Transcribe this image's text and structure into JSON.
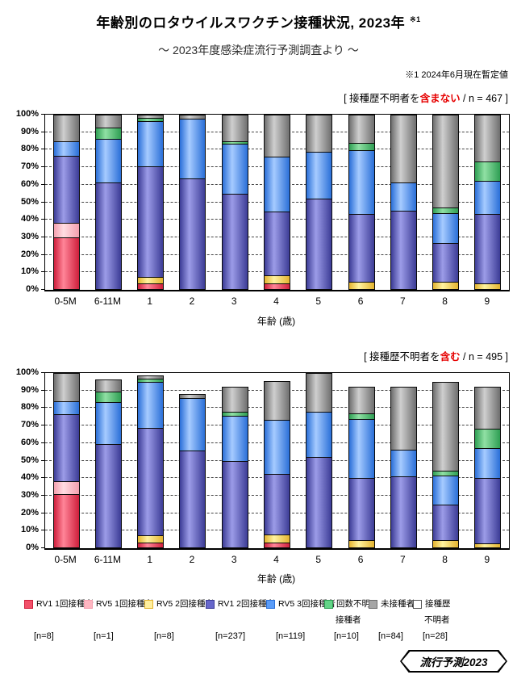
{
  "page": {
    "title": "年齢別のロタウイルスワクチン接種状況, 2023年",
    "title_note_ref": "※1",
    "subtitle": "～ 2023年度感染症流行予測調査より ～",
    "footnote": "※1  2024年6月現在暫定値",
    "badge": "流行予測2023"
  },
  "axis": {
    "x_label": "年齢 (歳)",
    "y_ticks": [
      "100%",
      "90%",
      "80%",
      "70%",
      "60%",
      "50%",
      "40%",
      "30%",
      "20%",
      "10%",
      "0%"
    ],
    "categories": [
      "0-5M",
      "6-11M",
      "1",
      "2",
      "3",
      "4",
      "5",
      "6",
      "7",
      "8",
      "9"
    ]
  },
  "colors": {
    "rv1_1": {
      "edge": "#cf1f3c",
      "mid": "#ff8598",
      "legend": "#f25069"
    },
    "rv5_1": {
      "edge": "#f49fae",
      "mid": "#ffdde2",
      "legend": "#ffb6c1"
    },
    "rv5_2": {
      "edge": "#e3b32f",
      "mid": "#fff3a0",
      "legend": "#ffef9e"
    },
    "rv1_2": {
      "edge": "#3c3c96",
      "mid": "#9c9ce8",
      "legend": "#6767cb"
    },
    "rv5_3": {
      "edge": "#2a6fd8",
      "mid": "#a6cbff",
      "legend": "#5a9cf8"
    },
    "unknown_doses": {
      "edge": "#2e9e53",
      "mid": "#90e0a4",
      "legend": "#63d487"
    },
    "unvaccinated": {
      "edge": "#6e6e6e",
      "mid": "#cfcfcf",
      "legend": "#a6a6a6"
    },
    "unknown_history": {
      "edge": "#555555",
      "mid": "#ffffff",
      "legend": "#ffffff"
    }
  },
  "legend": {
    "items": [
      {
        "key": "rv1_1",
        "label": "RV1 1回接種者",
        "label2": "",
        "n": "[n=8]",
        "x": 30
      },
      {
        "key": "rv5_1",
        "label": "RV5 1回接種者",
        "label2": "",
        "n": "[n=1]",
        "x": 104
      },
      {
        "key": "rv5_2",
        "label": "RV5 2回接種者",
        "label2": "",
        "n": "[n=8]",
        "x": 179
      },
      {
        "key": "rv1_2",
        "label": "RV1 2回接種者",
        "label2": "",
        "n": "[n=237]",
        "x": 255
      },
      {
        "key": "rv5_3",
        "label": "RV5 3回接種者",
        "label2": "",
        "n": "[n=119]",
        "x": 330
      },
      {
        "key": "unknown_doses",
        "label": "回数不明",
        "label2": "接種者",
        "n": "[n=10]",
        "x": 402
      },
      {
        "key": "unvaccinated",
        "label": "未接種者",
        "label2": "",
        "n": "[n=84]",
        "x": 457
      },
      {
        "key": "unknown_history",
        "label": "接種歴",
        "label2": "不明者",
        "n": "[n=28]",
        "x": 512
      }
    ]
  },
  "chart_data": [
    {
      "type": "bar",
      "stacked": true,
      "percent_axis": true,
      "ylim": [
        0,
        100
      ],
      "grid": "dashed-horizontal-10pct",
      "title_parts": {
        "prefix": "[ 接種歴不明者を",
        "highlight": "含まない",
        "suffix": " / n = 467 ]"
      },
      "categories": [
        "0-5M",
        "6-11M",
        "1",
        "2",
        "3",
        "4",
        "5",
        "6",
        "7",
        "8",
        "9"
      ],
      "series": [
        {
          "name": "RV1 1回接種者",
          "key": "rv1_1",
          "values": [
            30,
            0,
            3,
            0,
            0,
            3,
            0,
            0,
            0,
            0,
            0
          ]
        },
        {
          "name": "RV5 1回接種者",
          "key": "rv5_1",
          "values": [
            8,
            0,
            0,
            0,
            0,
            0,
            0,
            0,
            0,
            0,
            0
          ]
        },
        {
          "name": "RV5 2回接種者",
          "key": "rv5_2",
          "values": [
            0,
            0,
            3,
            0,
            0,
            4,
            0,
            4,
            0,
            4,
            3
          ]
        },
        {
          "name": "RV1 2回接種者",
          "key": "rv1_2",
          "values": [
            39,
            62,
            65,
            64,
            55,
            37,
            52,
            39,
            45,
            22,
            40
          ]
        },
        {
          "name": "RV5 3回接種者",
          "key": "rv5_3",
          "values": [
            8,
            25,
            26,
            34,
            29,
            32,
            27,
            37,
            16,
            17,
            19
          ]
        },
        {
          "name": "回数不明接種者",
          "key": "unknown_doses",
          "values": [
            0,
            6,
            1.5,
            0,
            1,
            0,
            0,
            4,
            0,
            3,
            11
          ]
        },
        {
          "name": "未接種者",
          "key": "unvaccinated",
          "values": [
            15,
            7,
            1.5,
            2,
            15,
            24,
            21,
            16,
            39,
            54,
            27
          ]
        },
        {
          "name": "接種歴不明者",
          "key": "unknown_history",
          "values": [
            0,
            0,
            0,
            0,
            0,
            0,
            0,
            0,
            0,
            0,
            0
          ]
        }
      ]
    },
    {
      "type": "bar",
      "stacked": true,
      "percent_axis": true,
      "ylim": [
        0,
        100
      ],
      "grid": "dashed-horizontal-10pct",
      "title_parts": {
        "prefix": "[ 接種歴不明者を",
        "highlight": "含む",
        "suffix": " / n = 495 ]"
      },
      "categories": [
        "0-5M",
        "6-11M",
        "1",
        "2",
        "3",
        "4",
        "5",
        "6",
        "7",
        "8",
        "9"
      ],
      "series": [
        {
          "name": "RV1 1回接種者",
          "key": "rv1_1",
          "values": [
            31,
            0,
            2.5,
            0,
            0,
            2.5,
            0,
            0,
            0,
            0,
            0
          ]
        },
        {
          "name": "RV5 1回接種者",
          "key": "rv5_1",
          "values": [
            7,
            0,
            0,
            0,
            0,
            0,
            0,
            0,
            0,
            0,
            0
          ]
        },
        {
          "name": "RV5 2回接種者",
          "key": "rv5_2",
          "values": [
            0,
            0,
            3.5,
            0,
            0,
            4,
            0,
            4,
            0,
            4,
            2
          ]
        },
        {
          "name": "RV1 2回接種者",
          "key": "rv1_2",
          "values": [
            39,
            60,
            63,
            56,
            50,
            35.5,
            52,
            36,
            41,
            20,
            38
          ]
        },
        {
          "name": "RV5 3回接種者",
          "key": "rv5_3",
          "values": [
            7,
            24,
            27,
            30,
            26,
            31,
            26,
            34,
            15,
            17,
            17
          ]
        },
        {
          "name": "回数不明接種者",
          "key": "unknown_doses",
          "values": [
            0,
            5.5,
            1,
            0,
            2,
            0,
            0,
            3,
            0,
            2,
            11
          ]
        },
        {
          "name": "未接種者",
          "key": "unvaccinated",
          "values": [
            16,
            7,
            1.5,
            2,
            14,
            22.5,
            22,
            15,
            36,
            52,
            24
          ]
        },
        {
          "name": "接種歴不明者",
          "key": "unknown_history",
          "values": [
            0,
            3.5,
            1.5,
            12,
            8,
            4.5,
            0,
            8,
            8,
            5,
            8
          ]
        }
      ]
    }
  ]
}
